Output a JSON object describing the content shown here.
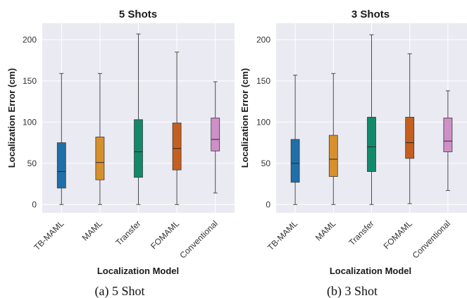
{
  "chart_data": [
    {
      "type": "box",
      "title": "5 Shots",
      "caption": "(a) 5 Shot",
      "xlabel": "Localization Model",
      "ylabel": "Localization Error (cm)",
      "categories": [
        "TB-MAML",
        "MAML",
        "Transfer",
        "FOMAML",
        "Conventional"
      ],
      "yticks": [
        0,
        50,
        100,
        150,
        200
      ],
      "ylim": [
        -10,
        220
      ],
      "grid": true,
      "boxes": [
        {
          "min": 0,
          "q1": 20,
          "median": 40,
          "q3": 75,
          "max": 159
        },
        {
          "min": 0,
          "q1": 30,
          "median": 51,
          "q3": 82,
          "max": 159
        },
        {
          "min": 0,
          "q1": 33,
          "median": 64,
          "q3": 103,
          "max": 207
        },
        {
          "min": 0,
          "q1": 42,
          "median": 68,
          "q3": 99,
          "max": 185
        },
        {
          "min": 14,
          "q1": 65,
          "median": 79,
          "q3": 105,
          "max": 149
        }
      ]
    },
    {
      "type": "box",
      "title": "3 Shots",
      "caption": "(b) 3 Shot",
      "xlabel": "Localization Model",
      "ylabel": "Localization Error (cm)",
      "categories": [
        "TB-MAML",
        "MAML",
        "Transfer",
        "FOMAML",
        "Conventional"
      ],
      "yticks": [
        0,
        50,
        100,
        150,
        200
      ],
      "ylim": [
        -10,
        220
      ],
      "grid": true,
      "boxes": [
        {
          "min": 0,
          "q1": 27,
          "median": 50,
          "q3": 79,
          "max": 157
        },
        {
          "min": 0,
          "q1": 34,
          "median": 55,
          "q3": 84,
          "max": 159
        },
        {
          "min": 0,
          "q1": 40,
          "median": 70,
          "q3": 106,
          "max": 206
        },
        {
          "min": 1,
          "q1": 56,
          "median": 75,
          "q3": 106,
          "max": 183
        },
        {
          "min": 17,
          "q1": 64,
          "median": 77,
          "q3": 105,
          "max": 138
        }
      ]
    }
  ],
  "colors": {
    "background": "#eaeaf2",
    "grid": "#ffffff",
    "whisker": "#4a4a4a",
    "boxes": [
      "#1f6fa8",
      "#d8902c",
      "#13896b",
      "#c45f20",
      "#cf8fc7"
    ]
  }
}
